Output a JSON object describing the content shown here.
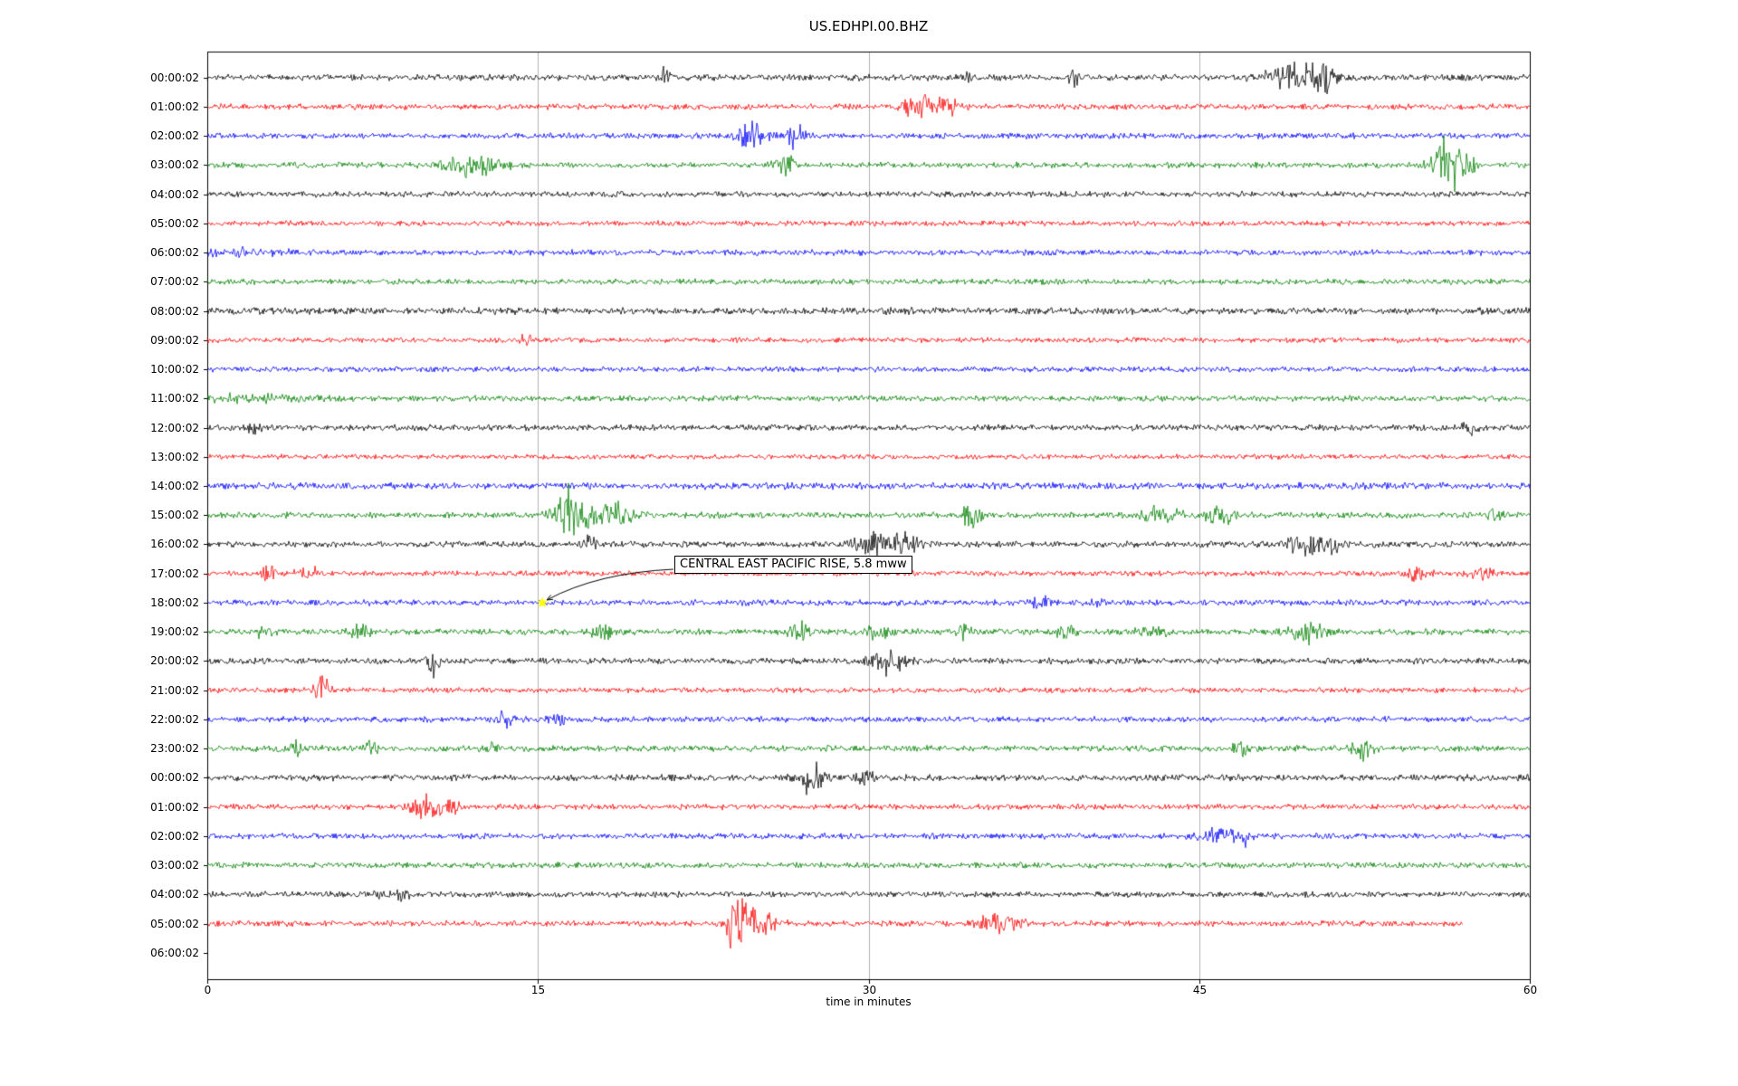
{
  "title": "US.EDHPI.00.BHZ",
  "x_axis": {
    "label": "time in minutes",
    "min": 0,
    "max": 60,
    "ticks": [
      0,
      15,
      30,
      45,
      60
    ]
  },
  "annotation": {
    "text": "CENTRAL EAST PACIFIC RISE, 5.8 mww",
    "target_row_index": 18,
    "target_row_label": "18:00:02",
    "target_minute": 15.2,
    "marker_color": "#ffff00"
  },
  "colors": {
    "grid": "#b0b0b0",
    "frame": "#000000",
    "background": "#ffffff"
  },
  "chart_data": {
    "type": "line",
    "description": "24-hour helicorder seismogram, one trace per hour, amplitude vs time in minutes",
    "x_range_minutes": [
      0,
      60
    ],
    "rows": [
      {
        "label": "00:00:02",
        "color": "#000000",
        "base": 2.4,
        "end": 60,
        "events": [
          [
            20.8,
            3.5,
            0.25
          ],
          [
            34.5,
            1.5,
            0.4
          ],
          [
            39.3,
            2.5,
            0.3
          ],
          [
            49.3,
            4,
            1.2
          ],
          [
            50.8,
            3,
            0.6
          ]
        ]
      },
      {
        "label": "01:00:02",
        "color": "#ff0000",
        "base": 2.2,
        "end": 60,
        "events": [
          [
            32.3,
            4,
            0.7
          ],
          [
            33.6,
            3,
            0.5
          ]
        ]
      },
      {
        "label": "02:00:02",
        "color": "#0000ff",
        "base": 2.2,
        "end": 60,
        "events": [
          [
            24.7,
            5,
            0.7
          ],
          [
            26.7,
            4,
            0.4
          ]
        ]
      },
      {
        "label": "03:00:02",
        "color": "#008000",
        "base": 2.2,
        "end": 60,
        "events": [
          [
            11.8,
            3,
            1.0
          ],
          [
            13,
            2,
            0.7
          ],
          [
            26.2,
            4,
            0.4
          ],
          [
            56.2,
            10,
            0.6
          ],
          [
            57,
            6,
            0.4
          ]
        ]
      },
      {
        "label": "04:00:02",
        "color": "#000000",
        "base": 2.2,
        "end": 60,
        "events": []
      },
      {
        "label": "05:00:02",
        "color": "#ff0000",
        "base": 2.0,
        "end": 60,
        "events": []
      },
      {
        "label": "06:00:02",
        "color": "#0000ff",
        "base": 2.2,
        "end": 60,
        "events": [
          [
            2,
            1,
            2
          ]
        ]
      },
      {
        "label": "07:00:02",
        "color": "#008000",
        "base": 2.1,
        "end": 60,
        "events": []
      },
      {
        "label": "08:00:02",
        "color": "#000000",
        "base": 2.6,
        "end": 60,
        "events": []
      },
      {
        "label": "09:00:02",
        "color": "#ff0000",
        "base": 2.0,
        "end": 60,
        "events": [
          [
            14.4,
            2.5,
            0.25
          ]
        ]
      },
      {
        "label": "10:00:02",
        "color": "#0000ff",
        "base": 2.0,
        "end": 60,
        "events": []
      },
      {
        "label": "11:00:02",
        "color": "#008000",
        "base": 2.2,
        "end": 60,
        "events": [
          [
            2,
            1,
            2.5
          ]
        ]
      },
      {
        "label": "12:00:02",
        "color": "#000000",
        "base": 2.3,
        "end": 60,
        "events": [
          [
            2.2,
            2,
            0.3
          ],
          [
            57.3,
            2,
            0.3
          ]
        ]
      },
      {
        "label": "13:00:02",
        "color": "#ff0000",
        "base": 1.9,
        "end": 60,
        "events": []
      },
      {
        "label": "14:00:02",
        "color": "#0000ff",
        "base": 2.6,
        "end": 60,
        "events": []
      },
      {
        "label": "15:00:02",
        "color": "#008000",
        "base": 2.3,
        "end": 60,
        "events": [
          [
            16.2,
            9,
            0.5
          ],
          [
            17.2,
            5,
            1.0
          ],
          [
            18.6,
            3,
            0.8
          ],
          [
            34.7,
            4,
            0.4
          ],
          [
            43.2,
            3,
            0.8
          ],
          [
            45.9,
            3,
            0.6
          ],
          [
            58.4,
            2.5,
            0.4
          ]
        ]
      },
      {
        "label": "16:00:02",
        "color": "#000000",
        "base": 2.3,
        "end": 60,
        "events": [
          [
            17.4,
            3,
            0.3
          ],
          [
            30.2,
            3.5,
            1.0
          ],
          [
            31.8,
            3,
            0.6
          ],
          [
            49.7,
            4,
            0.8
          ],
          [
            51,
            2.5,
            0.4
          ]
        ]
      },
      {
        "label": "17:00:02",
        "color": "#ff0000",
        "base": 2.0,
        "end": 60,
        "events": [
          [
            2.9,
            3.5,
            0.4
          ],
          [
            4.7,
            2.5,
            0.6
          ],
          [
            54.9,
            3,
            0.5
          ],
          [
            57.9,
            3,
            0.5
          ]
        ]
      },
      {
        "label": "18:00:02",
        "color": "#0000ff",
        "base": 2.2,
        "end": 60,
        "events": [
          [
            37.8,
            2.5,
            0.4
          ],
          [
            40.3,
            2.5,
            0.3
          ]
        ]
      },
      {
        "label": "19:00:02",
        "color": "#008000",
        "base": 2.3,
        "end": 60,
        "events": [
          [
            2.4,
            2.5,
            0.4
          ],
          [
            6.9,
            2.5,
            0.4
          ],
          [
            17.9,
            3,
            0.4
          ],
          [
            26.9,
            3,
            0.5
          ],
          [
            30.4,
            2.5,
            0.5
          ],
          [
            34.3,
            2,
            0.3
          ],
          [
            38.9,
            2.5,
            0.4
          ],
          [
            42.9,
            2.5,
            0.7
          ],
          [
            49.9,
            3,
            0.7
          ]
        ]
      },
      {
        "label": "20:00:02",
        "color": "#000000",
        "base": 2.3,
        "end": 60,
        "events": [
          [
            10.2,
            4.5,
            0.25
          ],
          [
            30.9,
            3.5,
            0.8
          ]
        ]
      },
      {
        "label": "21:00:02",
        "color": "#ff0000",
        "base": 2.0,
        "end": 60,
        "events": [
          [
            5.2,
            5,
            0.3
          ]
        ]
      },
      {
        "label": "22:00:02",
        "color": "#0000ff",
        "base": 2.2,
        "end": 60,
        "events": [
          [
            13.6,
            4,
            0.3
          ],
          [
            15.9,
            2.5,
            0.4
          ]
        ]
      },
      {
        "label": "23:00:02",
        "color": "#008000",
        "base": 2.3,
        "end": 60,
        "events": [
          [
            4,
            3.5,
            0.3
          ],
          [
            7.4,
            2.5,
            0.3
          ],
          [
            12.9,
            2.5,
            0.3
          ],
          [
            46.9,
            2.5,
            0.4
          ],
          [
            52.4,
            3.5,
            0.4
          ]
        ]
      },
      {
        "label": "00:00:02",
        "color": "#000000",
        "base": 2.4,
        "end": 60,
        "events": [
          [
            27.4,
            4.5,
            0.6
          ],
          [
            29.9,
            2.5,
            0.4
          ]
        ]
      },
      {
        "label": "01:00:02",
        "color": "#ff0000",
        "base": 2.1,
        "end": 60,
        "events": [
          [
            9.9,
            3.5,
            0.7
          ],
          [
            11,
            2.5,
            0.5
          ]
        ]
      },
      {
        "label": "02:00:02",
        "color": "#0000ff",
        "base": 2.2,
        "end": 60,
        "events": [
          [
            45.9,
            3.5,
            0.7
          ],
          [
            47,
            2.5,
            0.4
          ]
        ]
      },
      {
        "label": "03:00:02",
        "color": "#008000",
        "base": 2.2,
        "end": 60,
        "events": []
      },
      {
        "label": "04:00:02",
        "color": "#000000",
        "base": 2.2,
        "end": 60,
        "events": [
          [
            7.9,
            3.5,
            0.3
          ],
          [
            8.9,
            2.5,
            0.3
          ]
        ]
      },
      {
        "label": "05:00:02",
        "color": "#ff0000",
        "base": 2.2,
        "end": 57,
        "events": [
          [
            24,
            11,
            0.35
          ],
          [
            24.9,
            5,
            0.9
          ],
          [
            35.9,
            3.5,
            0.9
          ]
        ]
      },
      {
        "label": "06:00:02",
        "color": "#000000",
        "base": 0,
        "end": 0,
        "events": []
      }
    ]
  }
}
